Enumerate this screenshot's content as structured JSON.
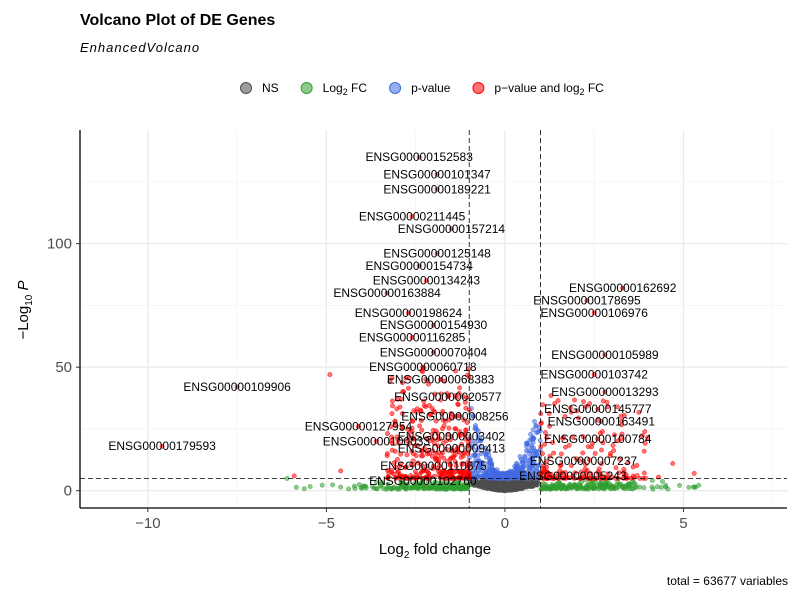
{
  "chart_data": {
    "type": "scatter",
    "title": "Volcano Plot of DE Genes",
    "subtitle": "EnhancedVolcano",
    "caption": "total = 63677 variables",
    "xlabel": "Log2 fold change",
    "ylabel": "−Log10 P",
    "xlim": [
      -11.9,
      7.9
    ],
    "ylim": [
      -7,
      146
    ],
    "xticks": [
      -10,
      -5,
      0,
      5
    ],
    "yticks": [
      0,
      50,
      100
    ],
    "fc_cutoff": 1,
    "p_cutoff_log10": 5,
    "legend_position": "top",
    "legend": [
      {
        "key": "NS",
        "label": "NS",
        "color": "#4d4d4d"
      },
      {
        "key": "FC",
        "label": "Log2 FC",
        "color": "#2f9e2f"
      },
      {
        "key": "P",
        "label": "p-value",
        "color": "#4169e1"
      },
      {
        "key": "FCP",
        "label": "p−value and log2 FC",
        "color": "#ff0000"
      }
    ],
    "labeled_genes": [
      {
        "id": "ENSG00000152583",
        "x": -2.4,
        "y": 135
      },
      {
        "id": "ENSG00000101347",
        "x": -1.9,
        "y": 128
      },
      {
        "id": "ENSG00000189221",
        "x": -1.9,
        "y": 122
      },
      {
        "id": "ENSG00000211445",
        "x": -2.6,
        "y": 111
      },
      {
        "id": "ENSG00000157214",
        "x": -1.5,
        "y": 106
      },
      {
        "id": "ENSG00000125148",
        "x": -1.9,
        "y": 96
      },
      {
        "id": "ENSG00000154734",
        "x": -2.4,
        "y": 91
      },
      {
        "id": "ENSG00000134243",
        "x": -2.2,
        "y": 85
      },
      {
        "id": "ENSG00000163884",
        "x": -3.3,
        "y": 80
      },
      {
        "id": "ENSG00000198624",
        "x": -2.7,
        "y": 72
      },
      {
        "id": "ENSG00000154930",
        "x": -2.0,
        "y": 67
      },
      {
        "id": "ENSG00000116285",
        "x": -2.6,
        "y": 62
      },
      {
        "id": "ENSG00000070404",
        "x": -2.0,
        "y": 56
      },
      {
        "id": "ENSG00000060718",
        "x": -2.3,
        "y": 50
      },
      {
        "id": "ENSG00000068383",
        "x": -1.8,
        "y": 45
      },
      {
        "id": "ENSG00000020577",
        "x": -1.6,
        "y": 38
      },
      {
        "id": "ENSG00000008256",
        "x": -1.4,
        "y": 30
      },
      {
        "id": "ENSG00000003402",
        "x": -1.5,
        "y": 22
      },
      {
        "id": "ENSG00000009413",
        "x": -1.5,
        "y": 17
      },
      {
        "id": "ENSG00000110675",
        "x": -2.0,
        "y": 10
      },
      {
        "id": "ENSG00000102760",
        "x": -2.3,
        "y": 4
      },
      {
        "id": "ENSG00000127954",
        "x": -4.1,
        "y": 26
      },
      {
        "id": "ENSG00000100033",
        "x": -3.6,
        "y": 20
      },
      {
        "id": "ENSG00000109906",
        "x": -7.5,
        "y": 42
      },
      {
        "id": "ENSG00000179593",
        "x": -9.6,
        "y": 18
      },
      {
        "id": "ENSG00000162692",
        "x": 3.3,
        "y": 82
      },
      {
        "id": "ENSG00000178695",
        "x": 2.3,
        "y": 77
      },
      {
        "id": "ENSG00000106976",
        "x": 2.5,
        "y": 72
      },
      {
        "id": "ENSG00000105989",
        "x": 2.8,
        "y": 55
      },
      {
        "id": "ENSG00000103742",
        "x": 2.5,
        "y": 47
      },
      {
        "id": "ENSG00000013293",
        "x": 2.8,
        "y": 40
      },
      {
        "id": "ENSG00000145777",
        "x": 2.6,
        "y": 33
      },
      {
        "id": "ENSG00000163491",
        "x": 2.7,
        "y": 28
      },
      {
        "id": "ENSG00000100784",
        "x": 2.6,
        "y": 21
      },
      {
        "id": "ENSG00000007237",
        "x": 2.2,
        "y": 12
      },
      {
        "id": "ENSG00000005243",
        "x": 1.9,
        "y": 6
      }
    ]
  }
}
